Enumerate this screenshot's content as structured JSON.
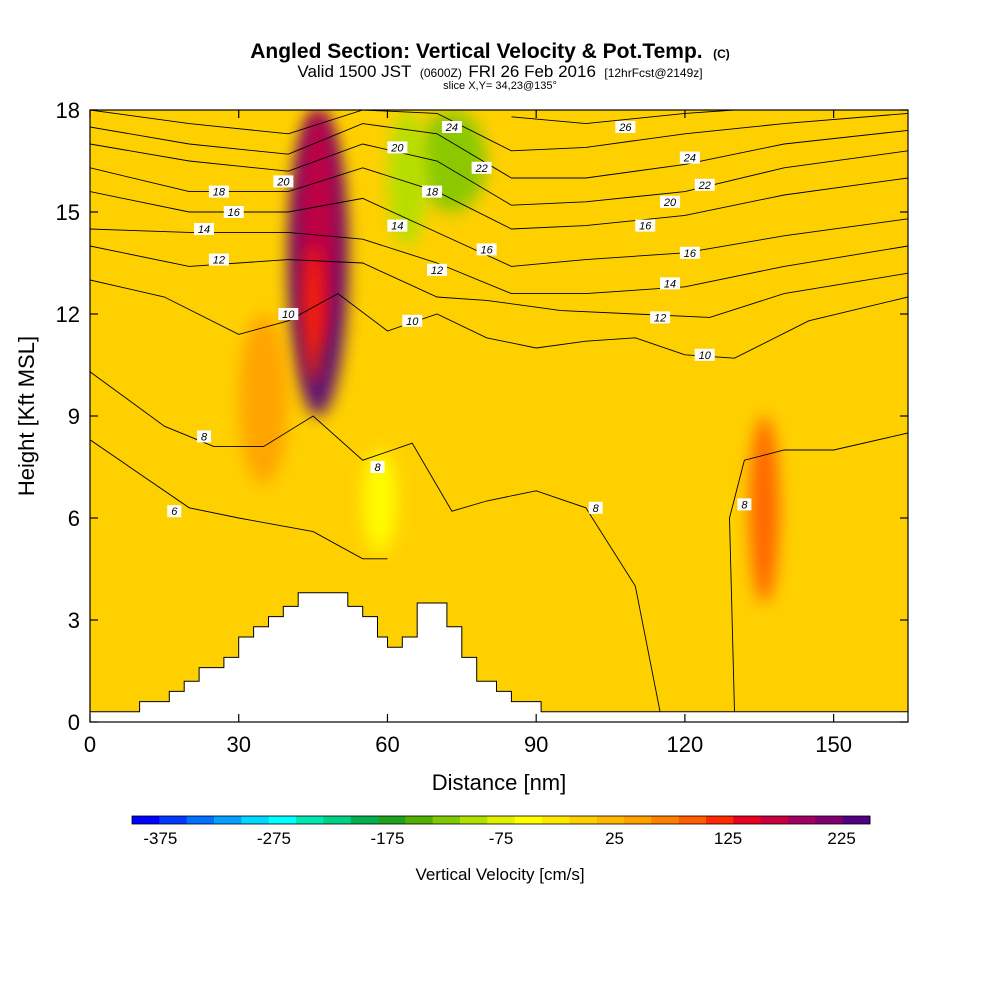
{
  "chart_data": {
    "type": "heatmap",
    "title": {
      "main": "Angled Section: Vertical Velocity & Pot.Temp.",
      "copyright": "(C)",
      "valid_prefix": "Valid 1500 JST",
      "valid_utc": "(0600Z)",
      "valid_date": "FRI 26 Feb 2016",
      "forecast": "[12hrFcst@2149z]",
      "slice": "slice X,Y= 34,23@135°"
    },
    "xlabel": "Distance [nm]",
    "ylabel": "Height [Kft MSL]",
    "xlim": [
      0,
      165
    ],
    "ylim": [
      0,
      18
    ],
    "x_ticks": [
      "0",
      "30",
      "60",
      "90",
      "120",
      "150"
    ],
    "y_ticks": [
      "0",
      "3",
      "6",
      "9",
      "12",
      "15",
      "18"
    ],
    "background_color": "#ffd000",
    "colorbar": {
      "label": "Vertical Velocity [cm/s]",
      "tick_labels": [
        "-375",
        "-275",
        "-175",
        "-75",
        "25",
        "125",
        "225"
      ],
      "range": [
        -400,
        250
      ],
      "colors": [
        "#0000ff",
        "#0038ff",
        "#0070ff",
        "#00a0ff",
        "#00d8ff",
        "#00ffff",
        "#00e8b0",
        "#00d088",
        "#00b050",
        "#20a020",
        "#50b000",
        "#80c800",
        "#b0e000",
        "#e0f000",
        "#ffff00",
        "#ffe800",
        "#ffd000",
        "#ffb800",
        "#ffa000",
        "#ff8000",
        "#ff5c00",
        "#ff2800",
        "#e80020",
        "#c80040",
        "#a00060",
        "#800070",
        "#500080"
      ]
    },
    "velocity_features": [
      {
        "x": [
          40,
          52
        ],
        "y": [
          9,
          18
        ],
        "value": 225,
        "color": "#500080"
      },
      {
        "x": [
          42,
          50
        ],
        "y": [
          11,
          18
        ],
        "value": 160,
        "color": "#c80040"
      },
      {
        "x": [
          43,
          47
        ],
        "y": [
          10,
          14
        ],
        "value": 125,
        "color": "#ff2800"
      },
      {
        "x": [
          66,
          80
        ],
        "y": [
          15,
          18
        ],
        "value": -125,
        "color": "#80c800"
      },
      {
        "x": [
          60,
          68
        ],
        "y": [
          14,
          18
        ],
        "value": -100,
        "color": "#b0e000"
      },
      {
        "x": [
          133,
          139
        ],
        "y": [
          3.5,
          9
        ],
        "value": 100,
        "color": "#ff5c00"
      },
      {
        "x": [
          30,
          40
        ],
        "y": [
          7,
          12
        ],
        "value": 50,
        "color": "#ffa000"
      },
      {
        "x": [
          55,
          62
        ],
        "y": [
          5,
          8
        ],
        "value": -75,
        "color": "#ffff00"
      }
    ],
    "isentropes_label_values": [
      "6",
      "8",
      "10",
      "12",
      "14",
      "16",
      "18",
      "20",
      "22",
      "24",
      "26"
    ],
    "isentropes": [
      {
        "label": "6",
        "points": [
          [
            0,
            8.3
          ],
          [
            20,
            6.3
          ],
          [
            30,
            6.0
          ],
          [
            45,
            5.6
          ],
          [
            55,
            4.8
          ],
          [
            60,
            4.8
          ]
        ]
      },
      {
        "label": "8",
        "points": [
          [
            0,
            10.3
          ],
          [
            15,
            8.7
          ],
          [
            25,
            8.1
          ],
          [
            35,
            8.1
          ],
          [
            45,
            9.0
          ],
          [
            55,
            7.7
          ],
          [
            65,
            8.2
          ],
          [
            73,
            6.2
          ],
          [
            80,
            6.5
          ],
          [
            90,
            6.8
          ],
          [
            100,
            6.3
          ],
          [
            110,
            4.0
          ],
          [
            115,
            0.3
          ]
        ]
      },
      {
        "label": "8",
        "points": [
          [
            130,
            0.3
          ],
          [
            129,
            6.0
          ],
          [
            132,
            7.7
          ],
          [
            140,
            8.0
          ],
          [
            150,
            8.0
          ],
          [
            165,
            8.5
          ]
        ]
      },
      {
        "label": "10",
        "points": [
          [
            0,
            13.0
          ],
          [
            15,
            12.5
          ],
          [
            30,
            11.4
          ],
          [
            40,
            11.8
          ],
          [
            50,
            12.6
          ],
          [
            60,
            11.5
          ],
          [
            70,
            12.0
          ],
          [
            80,
            11.3
          ],
          [
            90,
            11.0
          ],
          [
            100,
            11.2
          ],
          [
            110,
            11.3
          ],
          [
            120,
            10.8
          ],
          [
            130,
            10.7
          ],
          [
            145,
            11.8
          ],
          [
            165,
            12.5
          ]
        ]
      },
      {
        "label": "12",
        "points": [
          [
            0,
            14.0
          ],
          [
            20,
            13.4
          ],
          [
            40,
            13.6
          ],
          [
            55,
            13.5
          ],
          [
            70,
            12.5
          ],
          [
            80,
            12.4
          ],
          [
            95,
            12.1
          ],
          [
            110,
            12.0
          ],
          [
            125,
            11.9
          ],
          [
            140,
            12.6
          ],
          [
            165,
            13.2
          ]
        ]
      },
      {
        "label": "14",
        "points": [
          [
            0,
            14.5
          ],
          [
            20,
            14.4
          ],
          [
            40,
            14.4
          ],
          [
            55,
            14.2
          ],
          [
            70,
            13.5
          ],
          [
            85,
            12.6
          ],
          [
            100,
            12.6
          ],
          [
            120,
            12.8
          ],
          [
            140,
            13.4
          ],
          [
            165,
            14.0
          ]
        ]
      },
      {
        "label": "16",
        "points": [
          [
            0,
            15.6
          ],
          [
            20,
            15.0
          ],
          [
            40,
            15.0
          ],
          [
            55,
            15.4
          ],
          [
            70,
            14.4
          ],
          [
            85,
            13.4
          ],
          [
            100,
            13.6
          ],
          [
            120,
            13.8
          ],
          [
            140,
            14.3
          ],
          [
            165,
            14.8
          ]
        ]
      },
      {
        "label": "18",
        "points": [
          [
            0,
            16.3
          ],
          [
            20,
            15.6
          ],
          [
            40,
            15.6
          ],
          [
            55,
            16.3
          ],
          [
            70,
            15.6
          ],
          [
            85,
            14.5
          ],
          [
            100,
            14.6
          ],
          [
            120,
            14.9
          ],
          [
            140,
            15.5
          ],
          [
            165,
            16.0
          ]
        ]
      },
      {
        "label": "20",
        "points": [
          [
            0,
            17.0
          ],
          [
            20,
            16.5
          ],
          [
            40,
            16.2
          ],
          [
            55,
            17.0
          ],
          [
            70,
            16.5
          ],
          [
            85,
            15.2
          ],
          [
            100,
            15.3
          ],
          [
            120,
            15.6
          ],
          [
            140,
            16.3
          ],
          [
            165,
            16.8
          ]
        ]
      },
      {
        "label": "22",
        "points": [
          [
            0,
            17.5
          ],
          [
            20,
            17.0
          ],
          [
            40,
            16.7
          ],
          [
            55,
            17.6
          ],
          [
            70,
            17.3
          ],
          [
            85,
            16.0
          ],
          [
            100,
            16.0
          ],
          [
            120,
            16.4
          ],
          [
            140,
            17.0
          ],
          [
            165,
            17.4
          ]
        ]
      },
      {
        "label": "24",
        "points": [
          [
            0,
            18.0
          ],
          [
            20,
            17.6
          ],
          [
            40,
            17.3
          ],
          [
            55,
            18.0
          ],
          [
            70,
            17.9
          ],
          [
            85,
            16.8
          ],
          [
            100,
            16.9
          ],
          [
            120,
            17.3
          ],
          [
            140,
            17.6
          ],
          [
            165,
            17.9
          ]
        ]
      },
      {
        "label": "26",
        "points": [
          [
            85,
            17.8
          ],
          [
            100,
            17.6
          ],
          [
            120,
            17.9
          ],
          [
            130,
            18.0
          ]
        ]
      }
    ],
    "contour_labels": [
      {
        "text": "6",
        "x": 17,
        "y": 6.2
      },
      {
        "text": "8",
        "x": 23,
        "y": 8.4
      },
      {
        "text": "8",
        "x": 58,
        "y": 7.5
      },
      {
        "text": "8",
        "x": 102,
        "y": 6.3
      },
      {
        "text": "8",
        "x": 132,
        "y": 6.4
      },
      {
        "text": "10",
        "x": 40,
        "y": 12.0
      },
      {
        "text": "10",
        "x": 65,
        "y": 11.8
      },
      {
        "text": "10",
        "x": 124,
        "y": 10.8
      },
      {
        "text": "12",
        "x": 26,
        "y": 13.6
      },
      {
        "text": "12",
        "x": 70,
        "y": 13.3
      },
      {
        "text": "12",
        "x": 115,
        "y": 11.9
      },
      {
        "text": "14",
        "x": 23,
        "y": 14.5
      },
      {
        "text": "14",
        "x": 62,
        "y": 14.6
      },
      {
        "text": "14",
        "x": 117,
        "y": 12.9
      },
      {
        "text": "16",
        "x": 29,
        "y": 15.0
      },
      {
        "text": "16",
        "x": 80,
        "y": 13.9
      },
      {
        "text": "16",
        "x": 121,
        "y": 13.8
      },
      {
        "text": "16",
        "x": 112,
        "y": 14.6
      },
      {
        "text": "18",
        "x": 26,
        "y": 15.6
      },
      {
        "text": "18",
        "x": 69,
        "y": 15.6
      },
      {
        "text": "20",
        "x": 39,
        "y": 15.9
      },
      {
        "text": "20",
        "x": 62,
        "y": 16.9
      },
      {
        "text": "20",
        "x": 117,
        "y": 15.3
      },
      {
        "text": "22",
        "x": 79,
        "y": 16.3
      },
      {
        "text": "22",
        "x": 124,
        "y": 15.8
      },
      {
        "text": "24",
        "x": 73,
        "y": 17.5
      },
      {
        "text": "24",
        "x": 121,
        "y": 16.6
      },
      {
        "text": "26",
        "x": 108,
        "y": 17.5
      }
    ],
    "terrain_profile": [
      [
        0,
        0.3
      ],
      [
        10,
        0.3
      ],
      [
        10,
        0.6
      ],
      [
        16,
        0.6
      ],
      [
        16,
        0.9
      ],
      [
        19,
        0.9
      ],
      [
        19,
        1.2
      ],
      [
        22,
        1.2
      ],
      [
        22,
        1.6
      ],
      [
        27,
        1.6
      ],
      [
        27,
        1.9
      ],
      [
        30,
        1.9
      ],
      [
        30,
        2.5
      ],
      [
        33,
        2.5
      ],
      [
        33,
        2.8
      ],
      [
        36,
        2.8
      ],
      [
        36,
        3.1
      ],
      [
        39,
        3.1
      ],
      [
        39,
        3.4
      ],
      [
        42,
        3.4
      ],
      [
        42,
        3.8
      ],
      [
        52,
        3.8
      ],
      [
        52,
        3.4
      ],
      [
        55,
        3.4
      ],
      [
        55,
        3.1
      ],
      [
        58,
        3.1
      ],
      [
        58,
        2.5
      ],
      [
        60,
        2.5
      ],
      [
        60,
        2.2
      ],
      [
        63,
        2.2
      ],
      [
        63,
        2.5
      ],
      [
        66,
        2.5
      ],
      [
        66,
        3.5
      ],
      [
        72,
        3.5
      ],
      [
        72,
        2.8
      ],
      [
        75,
        2.8
      ],
      [
        75,
        1.9
      ],
      [
        78,
        1.9
      ],
      [
        78,
        1.2
      ],
      [
        82,
        1.2
      ],
      [
        82,
        0.9
      ],
      [
        85,
        0.9
      ],
      [
        85,
        0.6
      ],
      [
        91,
        0.6
      ],
      [
        91,
        0.3
      ],
      [
        165,
        0.3
      ]
    ]
  }
}
